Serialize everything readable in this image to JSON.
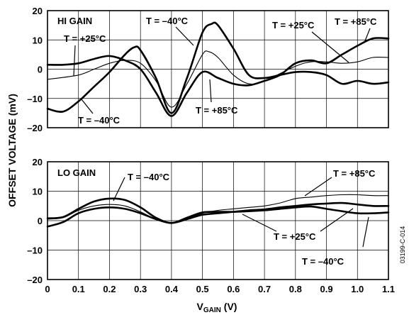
{
  "figure": {
    "ylabel": "OFFSET VOLTAGE (mV)",
    "xlabel_main": "V",
    "xlabel_sub": "GAIN",
    "xlabel_unit": " (V)",
    "code": "03199-C-014",
    "x_ticks": [
      "0",
      "0.1",
      "0.2",
      "0.3",
      "0.4",
      "0.5",
      "0.6",
      "0.7",
      "0.8",
      "0.9",
      "1.0",
      "1.1"
    ],
    "y_ticks": [
      "–20",
      "–10",
      "0",
      "10",
      "20"
    ]
  },
  "chart_data": [
    {
      "type": "line",
      "panel_label": "HI GAIN",
      "xlim": [
        0,
        1.1
      ],
      "ylim": [
        -20,
        20
      ],
      "grid": true,
      "series": [
        {
          "name": "T = +25°C",
          "weight": "thin",
          "x": [
            0,
            0.1,
            0.15,
            0.2,
            0.25,
            0.3,
            0.35,
            0.4,
            0.45,
            0.5,
            0.52,
            0.55,
            0.6,
            0.65,
            0.7,
            0.8,
            0.85,
            0.9,
            0.95,
            1.0,
            1.05,
            1.1
          ],
          "y": [
            -3.5,
            -2,
            0,
            2,
            3,
            2,
            -4,
            -13,
            -5,
            5,
            6,
            4,
            -2,
            -5,
            -4,
            1,
            2.5,
            2.5,
            2,
            2.5,
            4,
            4
          ]
        },
        {
          "name": "T = –40°C",
          "weight": "bold",
          "x": [
            0,
            0.05,
            0.1,
            0.15,
            0.2,
            0.25,
            0.28,
            0.3,
            0.35,
            0.4,
            0.45,
            0.5,
            0.53,
            0.55,
            0.6,
            0.65,
            0.7,
            0.75,
            0.8,
            0.85,
            0.9,
            0.95,
            1.0,
            1.05,
            1.1
          ],
          "y": [
            -13.5,
            -14.5,
            -11,
            -6,
            -1,
            5,
            7.5,
            6.5,
            -3,
            -15,
            -3,
            12.5,
            15.5,
            15,
            7,
            -2,
            -3,
            -2,
            -1,
            -1,
            -2,
            -5,
            -4,
            -5,
            -4.5
          ]
        },
        {
          "name": "T = +85°C",
          "weight": "bold",
          "x": [
            0,
            0.05,
            0.1,
            0.15,
            0.2,
            0.25,
            0.3,
            0.35,
            0.4,
            0.45,
            0.5,
            0.55,
            0.6,
            0.65,
            0.7,
            0.75,
            0.8,
            0.85,
            0.9,
            0.95,
            1.0,
            1.05,
            1.1
          ],
          "y": [
            1.5,
            1.5,
            2,
            3.5,
            4.5,
            3,
            0,
            -8,
            -16,
            -8,
            -1,
            -3,
            -5,
            -5.5,
            -4,
            -2,
            2,
            3,
            2,
            5,
            8,
            10.5,
            10.5
          ]
        }
      ],
      "annotations": [
        {
          "text": "HI GAIN"
        },
        {
          "text": "T = –40°C"
        },
        {
          "text": "T = +25°C"
        },
        {
          "text": "T = +25°C"
        },
        {
          "text": "T = +85°C"
        },
        {
          "text": "T = –40°C"
        },
        {
          "text": "T = +85°C"
        }
      ]
    },
    {
      "type": "line",
      "panel_label": "LO GAIN",
      "xlim": [
        0,
        1.1
      ],
      "ylim": [
        -20,
        20
      ],
      "grid": true,
      "series": [
        {
          "name": "T = +85°C",
          "weight": "thin",
          "x": [
            0,
            0.05,
            0.1,
            0.15,
            0.2,
            0.25,
            0.3,
            0.35,
            0.4,
            0.45,
            0.5,
            0.55,
            0.6,
            0.65,
            0.7,
            0.75,
            0.8,
            0.85,
            0.9,
            0.95,
            1.0,
            1.05,
            1.1
          ],
          "y": [
            0.5,
            1,
            3.5,
            5,
            5.5,
            5,
            3,
            0.5,
            -0.8,
            0.8,
            2.5,
            3.5,
            4,
            4.5,
            5,
            6,
            7.5,
            8,
            8.5,
            8.8,
            8.8,
            8.5,
            8.5
          ]
        },
        {
          "name": "T = +25°C",
          "weight": "bold",
          "x": [
            0,
            0.05,
            0.1,
            0.15,
            0.2,
            0.25,
            0.3,
            0.35,
            0.4,
            0.45,
            0.5,
            0.55,
            0.6,
            0.65,
            0.7,
            0.75,
            0.8,
            0.85,
            0.9,
            0.95,
            1.0,
            1.05,
            1.1
          ],
          "y": [
            -2,
            -0.5,
            2.5,
            4,
            4.5,
            4,
            2.5,
            0.5,
            -0.8,
            0.5,
            2,
            2.5,
            3,
            3.5,
            3.8,
            4.5,
            5,
            5.5,
            5.8,
            6,
            5.5,
            5,
            5
          ]
        },
        {
          "name": "T = –40°C",
          "weight": "bold",
          "x": [
            0,
            0.05,
            0.1,
            0.15,
            0.2,
            0.25,
            0.3,
            0.35,
            0.4,
            0.45,
            0.5,
            0.55,
            0.6,
            0.65,
            0.7,
            0.75,
            0.8,
            0.85,
            0.9,
            0.95,
            1.0,
            1.05,
            1.1
          ],
          "y": [
            0.8,
            1.2,
            4,
            6.5,
            7.5,
            7,
            4.5,
            1,
            -0.8,
            1,
            2.8,
            3,
            3,
            3.2,
            3.5,
            4,
            4.5,
            4.8,
            4,
            3.2,
            2.5,
            2.5,
            2.8
          ]
        }
      ],
      "annotations": [
        {
          "text": "LO GAIN"
        },
        {
          "text": "T = –40°C"
        },
        {
          "text": "T = +85°C"
        },
        {
          "text": "T = +25°C"
        },
        {
          "text": "T = –40°C"
        }
      ]
    }
  ]
}
